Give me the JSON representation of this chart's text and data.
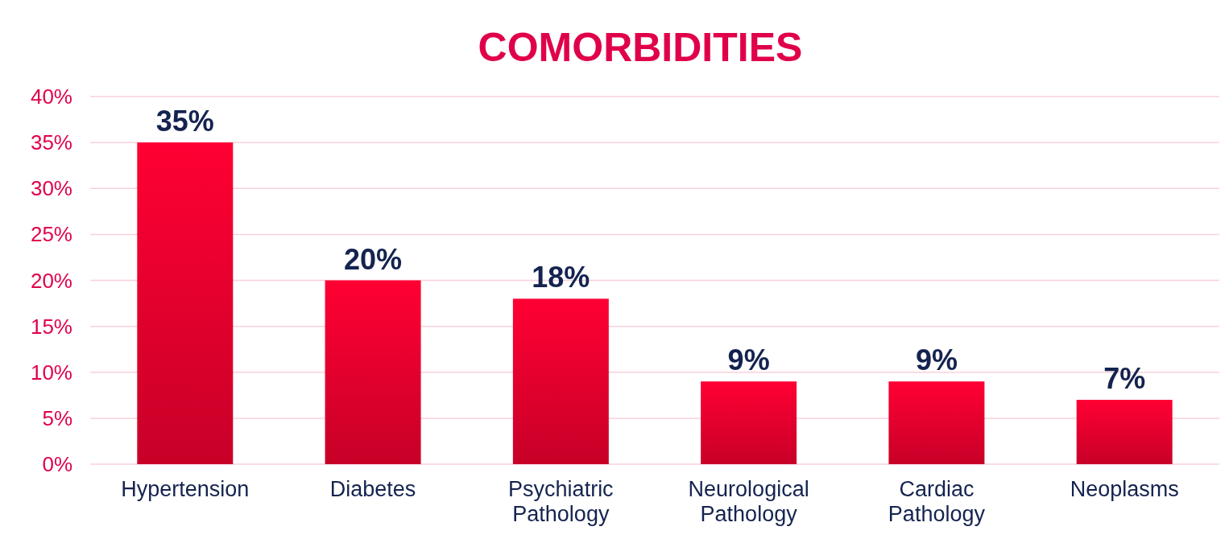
{
  "chart_data": {
    "type": "bar",
    "title": "COMORBIDITIES",
    "categories": [
      "Hypertension",
      "Diabetes",
      "Psychiatric Pathology",
      "Neurological Pathology",
      "Cardiac Pathology",
      "Neoplasms"
    ],
    "values": [
      35,
      20,
      18,
      9,
      9,
      7
    ],
    "value_labels": [
      "35%",
      "20%",
      "18%",
      "9%",
      "9%",
      "7%"
    ],
    "color": "#ff0033",
    "ylim": [
      0,
      40
    ],
    "yticks": [
      {
        "value": 0,
        "label": "0%"
      },
      {
        "value": 5,
        "label": "5%"
      },
      {
        "value": 10,
        "label": "10%"
      },
      {
        "value": 15,
        "label": "15%"
      },
      {
        "value": 20,
        "label": "20%"
      },
      {
        "value": 25,
        "label": "25%"
      },
      {
        "value": 30,
        "label": "30%"
      },
      {
        "value": 35,
        "label": "35%"
      },
      {
        "value": 40,
        "label": "40%"
      }
    ],
    "grid": "y"
  }
}
